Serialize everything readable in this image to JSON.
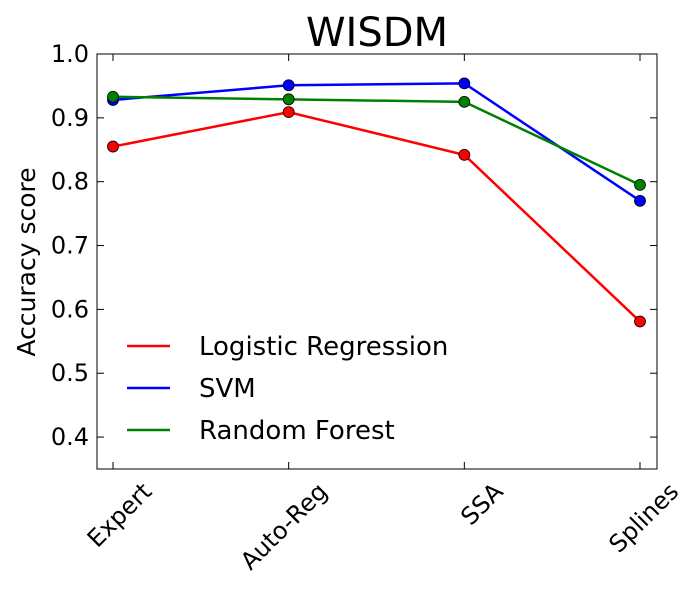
{
  "chart_data": {
    "type": "line",
    "title": "WISDM",
    "xlabel": "",
    "ylabel": "Accuracy score",
    "categories": [
      "Expert",
      "Auto-Reg",
      "SSA",
      "Splines"
    ],
    "ylim": [
      0.35,
      1.0
    ],
    "yticks": [
      "0.4",
      "0.5",
      "0.6",
      "0.7",
      "0.8",
      "0.9",
      "1.0"
    ],
    "grid": false,
    "legend_position": "lower-left",
    "series": [
      {
        "name": "Logistic Regression",
        "color": "#ff0000",
        "values": [
          0.855,
          0.909,
          0.842,
          0.581
        ]
      },
      {
        "name": "SVM",
        "color": "#0000ff",
        "values": [
          0.928,
          0.951,
          0.954,
          0.77
        ]
      },
      {
        "name": "Random Forest",
        "color": "#008000",
        "values": [
          0.933,
          0.929,
          0.925,
          0.795
        ]
      }
    ]
  }
}
